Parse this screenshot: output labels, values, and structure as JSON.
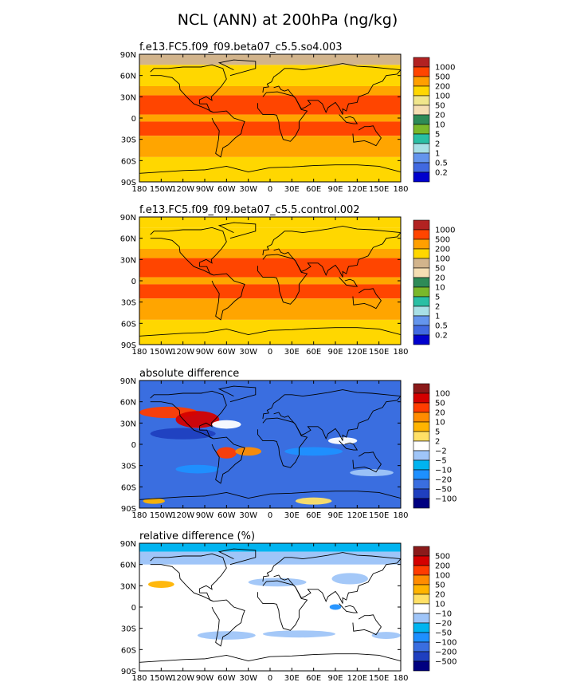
{
  "title": "NCL (ANN) at 200hPa (ng/kg)",
  "chart_data": [
    {
      "type": "heatmap",
      "panel": "top",
      "title": "f.e13.FC5.f09_f09.beta07_c5.5.so4.003",
      "lat_labels": [
        "90N",
        "60N",
        "30N",
        "0",
        "30S",
        "60S",
        "90S"
      ],
      "lon_labels": [
        "180",
        "150W",
        "120W",
        "90W",
        "60W",
        "30W",
        "0",
        "30E",
        "60E",
        "90E",
        "120E",
        "150E",
        "180"
      ],
      "xlim": [
        -180,
        180
      ],
      "ylim": [
        -90,
        90
      ],
      "colorbar": {
        "levels": [
          "1000",
          "500",
          "200",
          "100",
          "50",
          "20",
          "10",
          "5",
          "2",
          "1",
          "0.5",
          "0.2"
        ],
        "colors": [
          "#b22222",
          "#ff4500",
          "#ff9f00",
          "#ffd700",
          "#f0e68c",
          "#f5deb3",
          "#2e8b57",
          "#7ab82a",
          "#2abfa4",
          "#a8e0e6",
          "#6495ed",
          "#4169e1",
          "#0000cd"
        ]
      },
      "bands": [
        {
          "lat": [
            75,
            90
          ],
          "color": "#d2b48c"
        },
        {
          "lat": [
            45,
            75
          ],
          "color": "#ffd700"
        },
        {
          "lat": [
            32,
            45
          ],
          "color": "#ffa500"
        },
        {
          "lat": [
            5,
            32
          ],
          "color": "#ff4500"
        },
        {
          "lat": [
            -5,
            5
          ],
          "color": "#ffa500"
        },
        {
          "lat": [
            -25,
            -5
          ],
          "color": "#ff4500"
        },
        {
          "lat": [
            -55,
            -25
          ],
          "color": "#ffa500"
        },
        {
          "lat": [
            -90,
            -55
          ],
          "color": "#ffd700"
        }
      ]
    },
    {
      "type": "heatmap",
      "panel": "second",
      "title": "f.e13.FC5.f09_f09.beta07_c5.5.control.002",
      "lat_labels": [
        "90N",
        "60N",
        "30N",
        "0",
        "30S",
        "60S",
        "90S"
      ],
      "lon_labels": [
        "180",
        "150W",
        "120W",
        "90W",
        "60W",
        "30W",
        "0",
        "30E",
        "60E",
        "90E",
        "120E",
        "150E",
        "180"
      ],
      "xlim": [
        -180,
        180
      ],
      "ylim": [
        -90,
        90
      ],
      "colorbar": {
        "levels": [
          "1000",
          "500",
          "200",
          "100",
          "50",
          "20",
          "10",
          "5",
          "2",
          "1",
          "0.5",
          "0.2"
        ],
        "colors": [
          "#b22222",
          "#ff4500",
          "#ff9f00",
          "#ffd700",
          "#d2b48c",
          "#f5deb3",
          "#2e8b57",
          "#7ab82a",
          "#2abfa4",
          "#a8e0e6",
          "#6495ed",
          "#4169e1",
          "#0000cd"
        ]
      },
      "bands": [
        {
          "lat": [
            75,
            90
          ],
          "color": "#ffd700"
        },
        {
          "lat": [
            45,
            75
          ],
          "color": "#ffd700"
        },
        {
          "lat": [
            32,
            45
          ],
          "color": "#ffa500"
        },
        {
          "lat": [
            5,
            32
          ],
          "color": "#ff4500"
        },
        {
          "lat": [
            -5,
            5
          ],
          "color": "#ffa500"
        },
        {
          "lat": [
            -25,
            -5
          ],
          "color": "#ff4500"
        },
        {
          "lat": [
            -55,
            -25
          ],
          "color": "#ffa500"
        },
        {
          "lat": [
            -90,
            -55
          ],
          "color": "#ffd700"
        }
      ]
    },
    {
      "type": "heatmap",
      "panel": "third",
      "title": "absolute difference",
      "lat_labels": [
        "90N",
        "60N",
        "30N",
        "0",
        "30S",
        "60S",
        "90S"
      ],
      "lon_labels": [
        "180",
        "150W",
        "120W",
        "90W",
        "60W",
        "30W",
        "0",
        "30E",
        "60E",
        "90E",
        "120E",
        "150E",
        "180"
      ],
      "xlim": [
        -180,
        180
      ],
      "ylim": [
        -90,
        90
      ],
      "colorbar": {
        "levels": [
          "100",
          "50",
          "20",
          "10",
          "5",
          "2",
          "−2",
          "−5",
          "−10",
          "−20",
          "−50",
          "−100"
        ],
        "colors": [
          "#8b1a1a",
          "#d40000",
          "#ff3c00",
          "#ff8c00",
          "#ffb400",
          "#ffe066",
          "#ffffff",
          "#9fc5f8",
          "#00b4f0",
          "#1e90ff",
          "#3a6ee0",
          "#1f3fbf",
          "#000080"
        ]
      },
      "bands": [
        {
          "lat": [
            -90,
            90
          ],
          "color": "#3a6ee0"
        }
      ],
      "blobs": [
        {
          "lon": -140,
          "lat": 45,
          "rlon": 40,
          "rlat": 8,
          "color": "#ff3c00"
        },
        {
          "lon": -100,
          "lat": 35,
          "rlon": 30,
          "rlat": 12,
          "color": "#d40000"
        },
        {
          "lon": -60,
          "lat": 28,
          "rlon": 20,
          "rlat": 6,
          "color": "#ffffff"
        },
        {
          "lon": -120,
          "lat": 15,
          "rlon": 45,
          "rlat": 8,
          "color": "#1f3fbf"
        },
        {
          "lon": -60,
          "lat": -12,
          "rlon": 14,
          "rlat": 8,
          "color": "#ff3c00"
        },
        {
          "lon": -30,
          "lat": -10,
          "rlon": 18,
          "rlat": 6,
          "color": "#ff8c00"
        },
        {
          "lon": -100,
          "lat": -35,
          "rlon": 30,
          "rlat": 6,
          "color": "#1e90ff"
        },
        {
          "lon": 60,
          "lat": -10,
          "rlon": 40,
          "rlat": 6,
          "color": "#1e90ff"
        },
        {
          "lon": 100,
          "lat": 5,
          "rlon": 20,
          "rlat": 5,
          "color": "#ffffff"
        },
        {
          "lon": 140,
          "lat": -40,
          "rlon": 30,
          "rlat": 5,
          "color": "#9fc5f8"
        },
        {
          "lon": 60,
          "lat": -80,
          "rlon": 25,
          "rlat": 5,
          "color": "#ffe066"
        },
        {
          "lon": -160,
          "lat": -80,
          "rlon": 15,
          "rlat": 4,
          "color": "#ffb400"
        }
      ]
    },
    {
      "type": "heatmap",
      "panel": "bottom",
      "title": "relative difference (%)",
      "lat_labels": [
        "90N",
        "60N",
        "30N",
        "0",
        "30S",
        "60S",
        "90S"
      ],
      "lon_labels": [
        "180",
        "150W",
        "120W",
        "90W",
        "60W",
        "30W",
        "0",
        "30E",
        "60E",
        "90E",
        "120E",
        "150E",
        "180"
      ],
      "xlim": [
        -180,
        180
      ],
      "ylim": [
        -90,
        90
      ],
      "colorbar": {
        "levels": [
          "500",
          "200",
          "100",
          "50",
          "20",
          "10",
          "−10",
          "−20",
          "−50",
          "−100",
          "−200",
          "−500"
        ],
        "colors": [
          "#8b1a1a",
          "#d40000",
          "#ff3c00",
          "#ff8c00",
          "#ffb400",
          "#ffe066",
          "#ffffff",
          "#9fc5f8",
          "#00b4f0",
          "#1e90ff",
          "#3a6ee0",
          "#1f3fbf",
          "#000080"
        ]
      },
      "bands": [
        {
          "lat": [
            -90,
            90
          ],
          "color": "#ffffff"
        },
        {
          "lat": [
            78,
            90
          ],
          "color": "#00b4f0"
        },
        {
          "lat": [
            60,
            78
          ],
          "color": "#9fc5f8"
        }
      ],
      "blobs": [
        {
          "lon": -150,
          "lat": 32,
          "rlon": 18,
          "rlat": 5,
          "color": "#ffb400"
        },
        {
          "lon": 10,
          "lat": 35,
          "rlon": 40,
          "rlat": 6,
          "color": "#9fc5f8"
        },
        {
          "lon": 110,
          "lat": 40,
          "rlon": 25,
          "rlat": 8,
          "color": "#9fc5f8"
        },
        {
          "lon": -60,
          "lat": -40,
          "rlon": 40,
          "rlat": 6,
          "color": "#9fc5f8"
        },
        {
          "lon": 40,
          "lat": -38,
          "rlon": 50,
          "rlat": 5,
          "color": "#9fc5f8"
        },
        {
          "lon": 160,
          "lat": -40,
          "rlon": 20,
          "rlat": 5,
          "color": "#9fc5f8"
        },
        {
          "lon": 90,
          "lat": 0,
          "rlon": 8,
          "rlat": 4,
          "color": "#1e90ff"
        }
      ]
    }
  ]
}
